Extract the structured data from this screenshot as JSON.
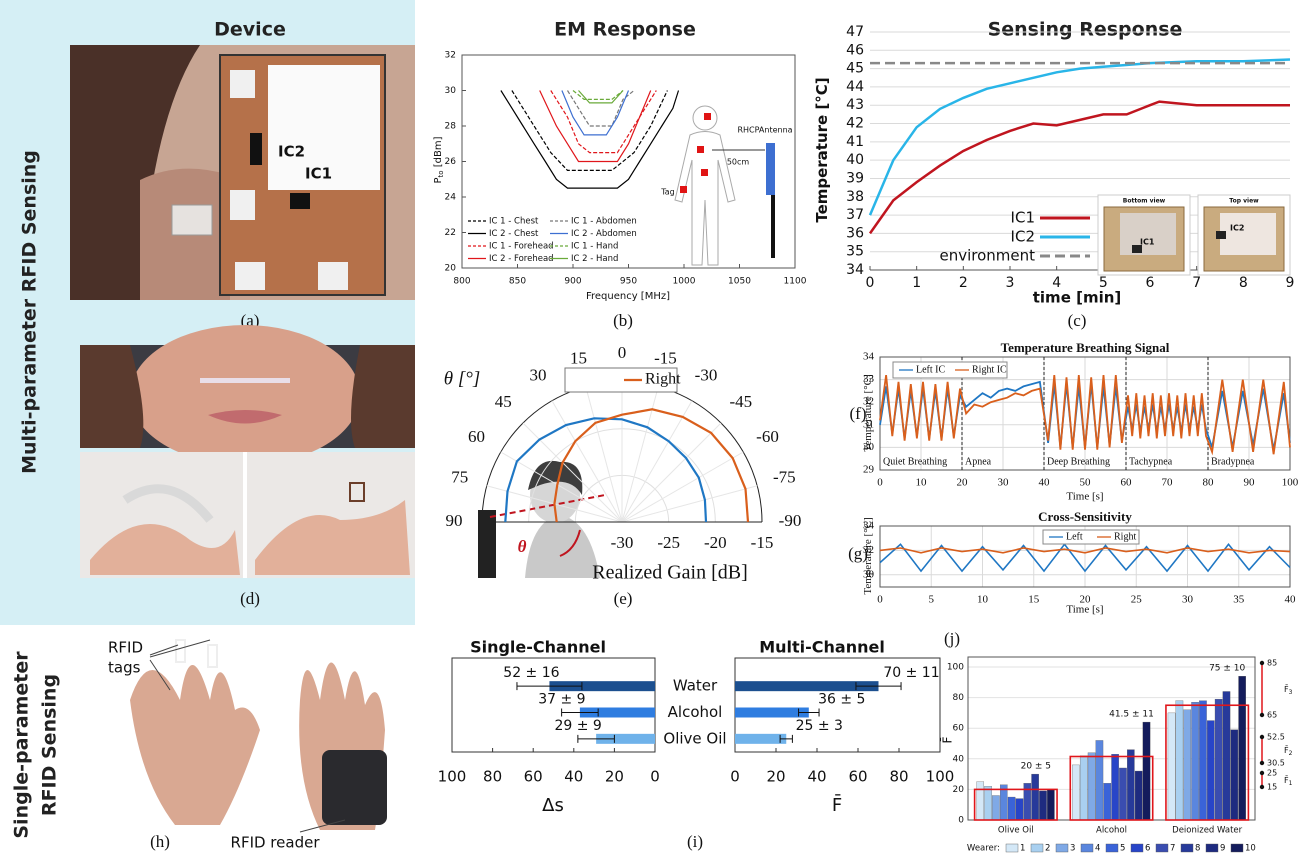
{
  "headers": {
    "device": "Device",
    "em": "EM Response",
    "sensing": "Sensing Response"
  },
  "row_labels": {
    "multi": "Multi-parameter RFID Sensing",
    "single": [
      "Single-parameter",
      "RFID Sensing"
    ]
  },
  "panel_labels": {
    "a": "(a)",
    "b": "(b)",
    "c": "(c)",
    "d": "(d)",
    "e": "(e)",
    "f": "(f)",
    "g": "(g)",
    "h": "(h)",
    "i": "(i)",
    "j": "(j)"
  },
  "photo_a": {
    "ic2": "IC2",
    "ic1": "IC1"
  },
  "photo_h": {
    "tags": [
      "RFID",
      "tags"
    ],
    "reader": "RFID reader"
  },
  "chart_data": [
    {
      "type": "line",
      "xlabel": "Frequency [MHz]",
      "ylabel": "P",
      "ylabel_sub": "to",
      "ylabel_unit": " [dBm]",
      "xlim": [
        800,
        1100
      ],
      "xticks": [
        800,
        850,
        900,
        950,
        1000,
        1050,
        1100
      ],
      "ylim": [
        20,
        32
      ],
      "yticks": [
        20,
        22,
        24,
        26,
        28,
        30,
        32
      ],
      "grid": false,
      "annotations": {
        "antenna": "RHCPAntenna",
        "distance": "50cm",
        "tag": "Tag"
      },
      "series": [
        {
          "name": "IC 1 - Chest",
          "color": "#000000",
          "dashed": true,
          "x": [
            845,
            865,
            880,
            895,
            935,
            955,
            970,
            985
          ],
          "values": [
            30,
            28,
            26.5,
            25.5,
            25.5,
            26.5,
            28,
            30
          ]
        },
        {
          "name": "IC 2 - Chest",
          "color": "#000000",
          "dashed": false,
          "x": [
            835,
            855,
            865,
            875,
            885,
            895,
            920,
            940,
            950,
            960,
            970,
            980,
            990,
            995
          ],
          "values": [
            30,
            28,
            27,
            26,
            25,
            24.5,
            24.5,
            24.5,
            25,
            26,
            27,
            28,
            29,
            30
          ]
        },
        {
          "name": "IC 1 - Forehead",
          "color": "#e0161b",
          "dashed": true,
          "x": [
            880,
            895,
            905,
            915,
            940,
            950,
            965,
            975
          ],
          "values": [
            30,
            28.5,
            27,
            26.5,
            26.5,
            27.5,
            29,
            30
          ]
        },
        {
          "name": "IC 2 - Forehead",
          "color": "#e0161b",
          "dashed": false,
          "x": [
            870,
            885,
            895,
            905,
            940,
            950,
            960,
            970
          ],
          "values": [
            30,
            28,
            27,
            26,
            26,
            27,
            28.5,
            30
          ]
        },
        {
          "name": "IC 1 - Abdomen",
          "color": "#777777",
          "dashed": true,
          "x": [
            895,
            905,
            915,
            935,
            945,
            955
          ],
          "values": [
            30,
            29,
            28,
            28,
            29.5,
            30
          ]
        },
        {
          "name": "IC 2 - Abdomen",
          "color": "#3d6fd1",
          "dashed": false,
          "x": [
            890,
            900,
            910,
            930,
            940,
            950
          ],
          "values": [
            30,
            28.5,
            27.5,
            27.5,
            28.5,
            30
          ]
        },
        {
          "name": "IC 1 - Hand",
          "color": "#6aaa3a",
          "dashed": true,
          "x": [
            900,
            910,
            935,
            945
          ],
          "values": [
            30,
            29.5,
            29.5,
            30
          ]
        },
        {
          "name": "IC 2 - Hand",
          "color": "#6aaa3a",
          "dashed": false,
          "x": [
            905,
            915,
            935,
            945
          ],
          "values": [
            30,
            29.3,
            29.3,
            30
          ]
        }
      ]
    },
    {
      "type": "line",
      "xlabel": "time [min]",
      "ylabel": "Temperature [°C]",
      "xlim": [
        0,
        9
      ],
      "xticks": [
        0,
        1,
        2,
        3,
        4,
        5,
        6,
        7,
        8,
        9
      ],
      "ylim": [
        34,
        47
      ],
      "yticks": [
        34,
        35,
        36,
        37,
        38,
        39,
        40,
        41,
        42,
        43,
        44,
        45,
        46,
        47
      ],
      "grid": "y",
      "inset_labels": {
        "bottom": "Bottom view",
        "top": "Top view",
        "ic1": "IC1",
        "ic2": "IC2"
      },
      "series": [
        {
          "name": "IC1",
          "color": "#c0151f",
          "dashed": false,
          "x": [
            0,
            0.5,
            1,
            1.5,
            2,
            2.5,
            3,
            3.5,
            4,
            4.5,
            5,
            5.5,
            6,
            6.2,
            7,
            8,
            9
          ],
          "values": [
            36,
            37.8,
            38.8,
            39.7,
            40.5,
            41.1,
            41.6,
            42,
            41.9,
            42.2,
            42.5,
            42.5,
            43,
            43.2,
            43,
            43,
            43
          ]
        },
        {
          "name": "IC2",
          "color": "#29b5e8",
          "dashed": false,
          "x": [
            0,
            0.5,
            1,
            1.5,
            2,
            2.5,
            3,
            3.5,
            4,
            4.5,
            5,
            6,
            7,
            8,
            9
          ],
          "values": [
            37,
            40,
            41.8,
            42.8,
            43.4,
            43.9,
            44.2,
            44.5,
            44.8,
            45,
            45.1,
            45.3,
            45.4,
            45.4,
            45.5
          ]
        },
        {
          "name": "environment",
          "color": "#888888",
          "dashed": true,
          "x": [
            0,
            9
          ],
          "values": [
            45.3,
            45.3
          ]
        }
      ]
    },
    {
      "type": "polar",
      "theta_label": "θ [°]",
      "r_label": "Realized Gain [dB]",
      "marker": "θ",
      "x": [
        90,
        75,
        60,
        45,
        30,
        15,
        0,
        -15,
        -30,
        -45,
        -60,
        -75,
        -90
      ],
      "xticks": [
        90,
        75,
        60,
        45,
        30,
        15,
        0,
        -15,
        -30,
        -45,
        -60,
        -75,
        -90
      ],
      "rlim": [
        -30,
        -15
      ],
      "rticks": [
        -30,
        -25,
        -20,
        -15
      ],
      "series": [
        {
          "name": "Left",
          "color": "#1f77c4",
          "values": [
            -17.5,
            -17.3,
            -17,
            -17.5,
            -18,
            -18.5,
            -19,
            -19.5,
            -20,
            -20.3,
            -20.5,
            -20.8,
            -21
          ]
        },
        {
          "name": "Right",
          "color": "#d95f1c",
          "values": [
            -23,
            -22.5,
            -22,
            -21,
            -20,
            -19,
            -18.5,
            -17.5,
            -17,
            -16.5,
            -16.3,
            -16.3,
            -16.5
          ]
        }
      ]
    },
    {
      "type": "line",
      "title": "Temperature Breathing Signal",
      "xlabel": "Time [s]",
      "ylabel": "Temperature [°C]",
      "xlim": [
        0,
        100
      ],
      "xticks": [
        0,
        10,
        20,
        30,
        40,
        50,
        60,
        70,
        80,
        90,
        100
      ],
      "ylim": [
        29,
        34
      ],
      "yticks": [
        29,
        30,
        31,
        32,
        33,
        34
      ],
      "grid": "both",
      "phases": [
        {
          "label": "Quiet Breathing",
          "start": 0
        },
        {
          "label": "Apnea",
          "start": 20
        },
        {
          "label": "Deep Breathing",
          "start": 40
        },
        {
          "label": "Tachypnea",
          "start": 60
        },
        {
          "label": "Bradypnea",
          "start": 80
        }
      ],
      "x": [
        0,
        1.5,
        3,
        4.5,
        6,
        7.5,
        9,
        10.5,
        12,
        13.5,
        15,
        16.5,
        18,
        19.5,
        21,
        23,
        25,
        27,
        29,
        31,
        33,
        35,
        37,
        39,
        41,
        42.5,
        44,
        45.5,
        47,
        48.5,
        50,
        51.5,
        53,
        54.5,
        56,
        57.5,
        59,
        60.5,
        61.5,
        62.5,
        63.5,
        64.5,
        65.5,
        66.5,
        67.5,
        68.5,
        69.5,
        70.5,
        71.5,
        72.5,
        73.5,
        74.5,
        75.5,
        76.5,
        77.5,
        78.5,
        79.5,
        81,
        83.5,
        86,
        88.5,
        91,
        93.5,
        96,
        98.5,
        100
      ],
      "series": [
        {
          "name": "Left IC",
          "color": "#1f77c4",
          "dashed": false,
          "values": [
            31,
            32.7,
            30.6,
            32.6,
            30.4,
            32.5,
            30.5,
            32.6,
            30.4,
            32.5,
            30.4,
            32.6,
            30.5,
            32.3,
            31.8,
            32.1,
            32.4,
            32.2,
            32.5,
            32.6,
            32.5,
            32.7,
            32.8,
            32.9,
            30.2,
            32.8,
            30,
            32.8,
            30,
            32.7,
            30,
            32.8,
            30,
            32.7,
            30.1,
            32.7,
            30.3,
            31.8,
            30.8,
            31.9,
            30.7,
            31.8,
            30.8,
            31.9,
            30.7,
            31.8,
            30.8,
            31.9,
            30.8,
            31.8,
            30.7,
            31.9,
            30.8,
            31.8,
            30.8,
            31.9,
            30.8,
            30,
            32.5,
            30,
            32.5,
            30.1,
            32.6,
            29.9,
            32.4,
            30.2
          ]
        },
        {
          "name": "Right IC",
          "color": "#d95f1c",
          "dashed": false,
          "values": [
            31.2,
            33.2,
            30.5,
            32.9,
            30.3,
            32.8,
            30.4,
            32.9,
            30.3,
            32.8,
            30.3,
            32.9,
            30.4,
            32.6,
            31.5,
            31.9,
            31.8,
            32,
            32.1,
            32.2,
            32.4,
            32.3,
            32.5,
            32.6,
            30.3,
            33.2,
            29.9,
            33.1,
            29.9,
            33.2,
            29.9,
            33.1,
            29.9,
            33.2,
            30,
            33.2,
            30.2,
            32.3,
            30.5,
            32.4,
            30.4,
            32.3,
            30.5,
            32.4,
            30.4,
            32.3,
            30.5,
            32.4,
            30.5,
            32.3,
            30.4,
            32.4,
            30.5,
            32.3,
            30.5,
            32.4,
            30.5,
            29.8,
            33,
            29.8,
            33,
            29.8,
            33,
            29.7,
            32.9,
            30
          ]
        }
      ]
    },
    {
      "type": "line",
      "title": "Cross-Sensitivity",
      "xlabel": "Time [s]",
      "ylabel": "Temperature [°C]",
      "xlim": [
        0,
        40
      ],
      "xticks": [
        0,
        5,
        10,
        15,
        20,
        25,
        30,
        35,
        40
      ],
      "ylim": [
        29,
        34
      ],
      "yticks": [
        30,
        32,
        34
      ],
      "grid": "both",
      "x": [
        0,
        2,
        4,
        6,
        8,
        10,
        12,
        14,
        16,
        18,
        20,
        22,
        24,
        26,
        28,
        30,
        32,
        34,
        36,
        38,
        40
      ],
      "series": [
        {
          "name": "Left",
          "color": "#1f77c4",
          "dashed": false,
          "values": [
            31,
            32.5,
            30.3,
            32.4,
            30.3,
            32.3,
            30.4,
            32.4,
            30.3,
            32.5,
            30.3,
            32.4,
            30.4,
            32.3,
            30.3,
            32.4,
            30.3,
            32.5,
            30.4,
            32.3,
            30.6
          ]
        },
        {
          "name": "Right",
          "color": "#d95f1c",
          "dashed": false,
          "values": [
            32,
            32.2,
            31.8,
            32.2,
            31.9,
            32.1,
            31.8,
            32.2,
            31.9,
            32.1,
            31.8,
            32.2,
            31.9,
            32.1,
            31.8,
            32.2,
            31.9,
            32.1,
            31.8,
            32,
            31.9
          ]
        }
      ]
    },
    {
      "type": "hbar",
      "title": "Single-Channel",
      "xlabel": "Δs",
      "values": [
        52,
        37,
        29
      ],
      "errors": [
        16,
        9,
        9
      ],
      "value_labels": [
        "52 ± 16",
        "37 ± 9",
        "29 ± 9"
      ],
      "colors": [
        "#1c4f8f",
        "#2f7de0",
        "#6fb2ea"
      ],
      "xlim": [
        100,
        0
      ],
      "xticks": [
        100,
        80,
        60,
        40,
        20,
        0
      ]
    },
    {
      "type": "hbar",
      "title": "Multi-Channel",
      "xlabel": "F̄",
      "categories": [
        "Water",
        "Alcohol",
        "Olive Oil"
      ],
      "values": [
        70,
        36,
        25
      ],
      "errors": [
        11,
        5,
        3
      ],
      "value_labels": [
        "70 ± 11",
        "36 ± 5",
        "25 ± 3"
      ],
      "colors": [
        "#1c4f8f",
        "#2f7de0",
        "#6fb2ea"
      ],
      "xlim": [
        0,
        100
      ],
      "xticks": [
        0,
        20,
        40,
        60,
        80,
        100
      ]
    },
    {
      "type": "grouped_bar",
      "ylabel": "F̄",
      "legend_title": "Wearer:",
      "categories": [
        "Olive Oil",
        "Alcohol",
        "Deionized Water"
      ],
      "ylim": [
        0,
        100
      ],
      "yticks": [
        0,
        20,
        40,
        60,
        80,
        100
      ],
      "group_means": [
        20,
        41.5,
        75
      ],
      "group_mean_labels": [
        "20 ± 5",
        "41.5 ± 11",
        "75 ± 10"
      ],
      "mean_color": "#e0161b",
      "ranges": [
        {
          "high": 85,
          "low": 65,
          "label": "F̄",
          "sub": "3"
        },
        {
          "high": 52.5,
          "low": 30.5,
          "label": "F̄",
          "sub": "2"
        },
        {
          "high": 25,
          "low": 15,
          "label": "F̄",
          "sub": "1"
        }
      ],
      "series": [
        {
          "name": "1",
          "color": "#d4e8f7",
          "values": [
            25,
            36,
            70
          ]
        },
        {
          "name": "2",
          "color": "#a9d0f0",
          "values": [
            22,
            42,
            78
          ]
        },
        {
          "name": "3",
          "color": "#7fa9e6",
          "values": [
            16,
            44,
            72
          ]
        },
        {
          "name": "4",
          "color": "#5a86de",
          "values": [
            23,
            52,
            77
          ]
        },
        {
          "name": "5",
          "color": "#3a63d8",
          "values": [
            15,
            24,
            78
          ]
        },
        {
          "name": "6",
          "color": "#2845c8",
          "values": [
            14,
            43,
            65
          ]
        },
        {
          "name": "7",
          "color": "#3a4db0",
          "values": [
            24,
            34,
            79
          ]
        },
        {
          "name": "8",
          "color": "#273a9a",
          "values": [
            30,
            46,
            84
          ]
        },
        {
          "name": "9",
          "color": "#1e2b80",
          "values": [
            19,
            32,
            59
          ]
        },
        {
          "name": "10",
          "color": "#141c5c",
          "values": [
            20,
            64,
            94
          ]
        }
      ]
    }
  ]
}
